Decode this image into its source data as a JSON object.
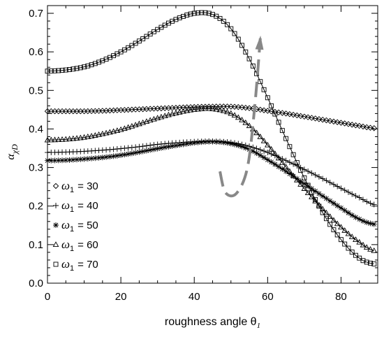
{
  "chart_data": {
    "type": "line",
    "xlabel": "roughness angle θ",
    "xlabel_sub": "1",
    "ylabel": "α",
    "ylabel_sub": "χD",
    "xlim": [
      0,
      90
    ],
    "ylim": [
      0.0,
      0.72
    ],
    "x_ticks": [
      0,
      20,
      40,
      60,
      80
    ],
    "x_tick_labels": [
      "0",
      "20",
      "40",
      "60",
      "80"
    ],
    "y_ticks": [
      0.0,
      0.1,
      0.2,
      0.3,
      0.4,
      0.5,
      0.6,
      0.7
    ],
    "y_tick_labels": [
      "0.0",
      "0.1",
      "0.2",
      "0.3",
      "0.4",
      "0.5",
      "0.6",
      "0.7"
    ],
    "grid": false,
    "legend_position": "lower-left",
    "marker_step": 1,
    "x": [
      0,
      5,
      10,
      15,
      20,
      25,
      30,
      35,
      40,
      45,
      50,
      55,
      60,
      65,
      70,
      75,
      80,
      85,
      89
    ],
    "series": [
      {
        "name": "ω1 = 30",
        "legend_label": "= 30",
        "marker": "diamond",
        "values": [
          0.446,
          0.446,
          0.446,
          0.447,
          0.449,
          0.451,
          0.453,
          0.455,
          0.457,
          0.458,
          0.458,
          0.454,
          0.447,
          0.44,
          0.432,
          0.424,
          0.416,
          0.408,
          0.402
        ]
      },
      {
        "name": "ω1 = 40",
        "legend_label": "= 40",
        "marker": "plus",
        "values": [
          0.339,
          0.34,
          0.342,
          0.345,
          0.349,
          0.354,
          0.36,
          0.364,
          0.367,
          0.368,
          0.365,
          0.355,
          0.339,
          0.318,
          0.295,
          0.271,
          0.246,
          0.222,
          0.204
        ]
      },
      {
        "name": "ω1 = 50",
        "legend_label": "= 50",
        "marker": "asterisk",
        "values": [
          0.318,
          0.319,
          0.322,
          0.326,
          0.332,
          0.34,
          0.349,
          0.357,
          0.364,
          0.367,
          0.362,
          0.347,
          0.32,
          0.29,
          0.258,
          0.226,
          0.195,
          0.166,
          0.153
        ]
      },
      {
        "name": "ω1 = 60",
        "legend_label": "= 60",
        "marker": "triangle",
        "values": [
          0.371,
          0.373,
          0.378,
          0.387,
          0.398,
          0.413,
          0.428,
          0.441,
          0.45,
          0.452,
          0.44,
          0.408,
          0.358,
          0.301,
          0.245,
          0.192,
          0.145,
          0.106,
          0.084
        ]
      },
      {
        "name": "ω1 = 70",
        "legend_label": "= 70",
        "marker": "square",
        "values": [
          0.55,
          0.553,
          0.561,
          0.577,
          0.6,
          0.628,
          0.658,
          0.684,
          0.7,
          0.697,
          0.66,
          0.582,
          0.481,
          0.375,
          0.273,
          0.183,
          0.113,
          0.065,
          0.05
        ]
      }
    ],
    "legend_symbol": "ω",
    "legend_subscript": "1",
    "annotation": {
      "type": "dashed-arrow",
      "color": "#888888",
      "points": [
        [
          47.0,
          0.29
        ],
        [
          48.5,
          0.235
        ],
        [
          51.5,
          0.233
        ],
        [
          54.5,
          0.3
        ],
        [
          56.5,
          0.46
        ],
        [
          58.0,
          0.635
        ]
      ]
    }
  }
}
